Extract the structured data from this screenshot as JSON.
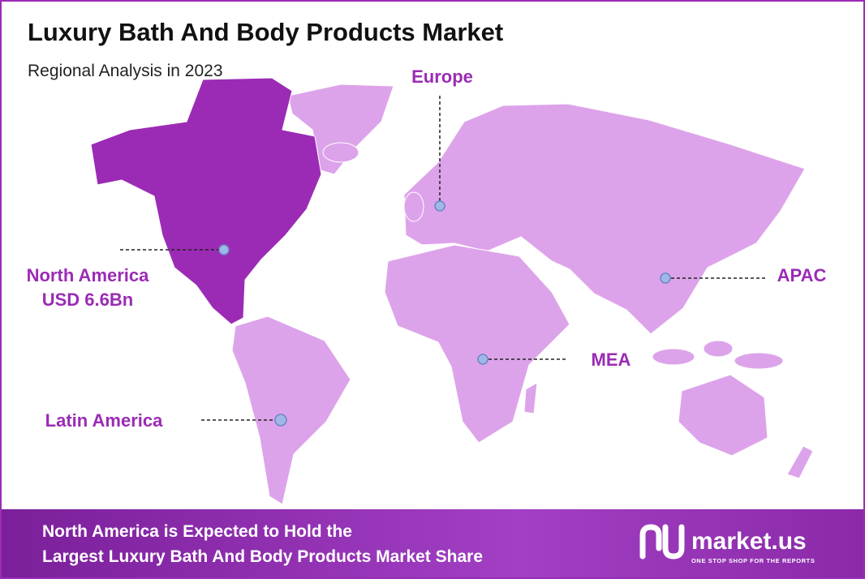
{
  "header": {
    "title": "Luxury Bath And Body Products Market",
    "subtitle": "Regional Analysis in 2023"
  },
  "regions": [
    {
      "label": "Europe"
    },
    {
      "label": "North America",
      "value": "USD 6.6Bn"
    },
    {
      "label": "APAC"
    },
    {
      "label": "MEA"
    },
    {
      "label": "Latin America"
    }
  ],
  "footer": {
    "lines": [
      "North America is Expected to Hold the",
      "Largest Luxury Bath And Body Products Market Share"
    ]
  },
  "logo": {
    "name": "market.us",
    "tagline": "ONE STOP SHOP FOR THE REPORTS"
  }
}
